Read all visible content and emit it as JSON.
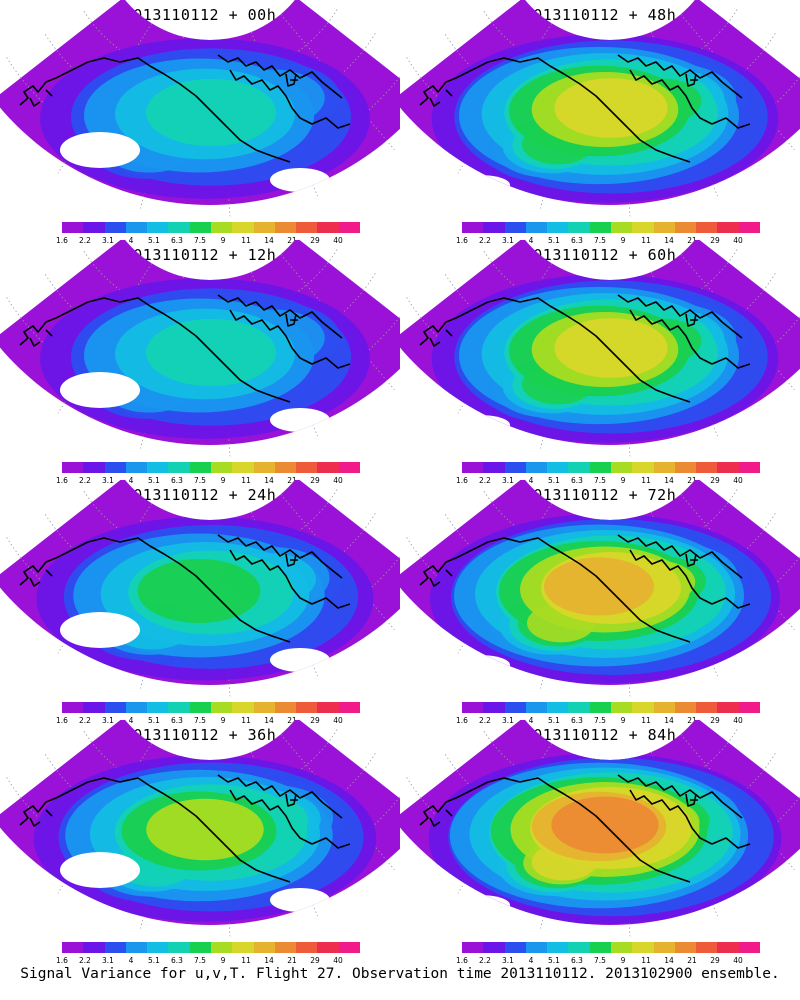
{
  "panels": [
    {
      "title": "2013110112 + 00h",
      "col": 0,
      "row": 0,
      "intensity": 0.25
    },
    {
      "title": "2013110112 + 48h",
      "col": 1,
      "row": 0,
      "intensity": 0.55
    },
    {
      "title": "2013110112 + 12h",
      "col": 0,
      "row": 1,
      "intensity": 0.33
    },
    {
      "title": "2013110112 + 60h",
      "col": 1,
      "row": 1,
      "intensity": 0.62
    },
    {
      "title": "2013110112 + 24h",
      "col": 0,
      "row": 2,
      "intensity": 0.4
    },
    {
      "title": "2013110112 + 72h",
      "col": 1,
      "row": 2,
      "intensity": 0.7
    },
    {
      "title": "2013110112 + 36h",
      "col": 0,
      "row": 3,
      "intensity": 0.48
    },
    {
      "title": "2013110112 + 84h",
      "col": 1,
      "row": 3,
      "intensity": 0.78
    }
  ],
  "colorbar": {
    "colors": [
      "#9a12d8",
      "#6a16e8",
      "#2c4ef0",
      "#1996ee",
      "#13bde3",
      "#13d2b4",
      "#19cf50",
      "#a8dc22",
      "#d8d62a",
      "#e6b330",
      "#ec8a34",
      "#ee5b3a",
      "#ee2d4c",
      "#f01a8a"
    ],
    "ticks": [
      "1.6",
      "2.2",
      "3.1",
      "4",
      "5.1",
      "6.3",
      "7.5",
      "9",
      "11",
      "14",
      "21",
      "29",
      "40"
    ]
  },
  "caption": "Signal Variance for u,v,T. Flight 27. Observation time 2013110112. 2013102900 ensemble."
}
